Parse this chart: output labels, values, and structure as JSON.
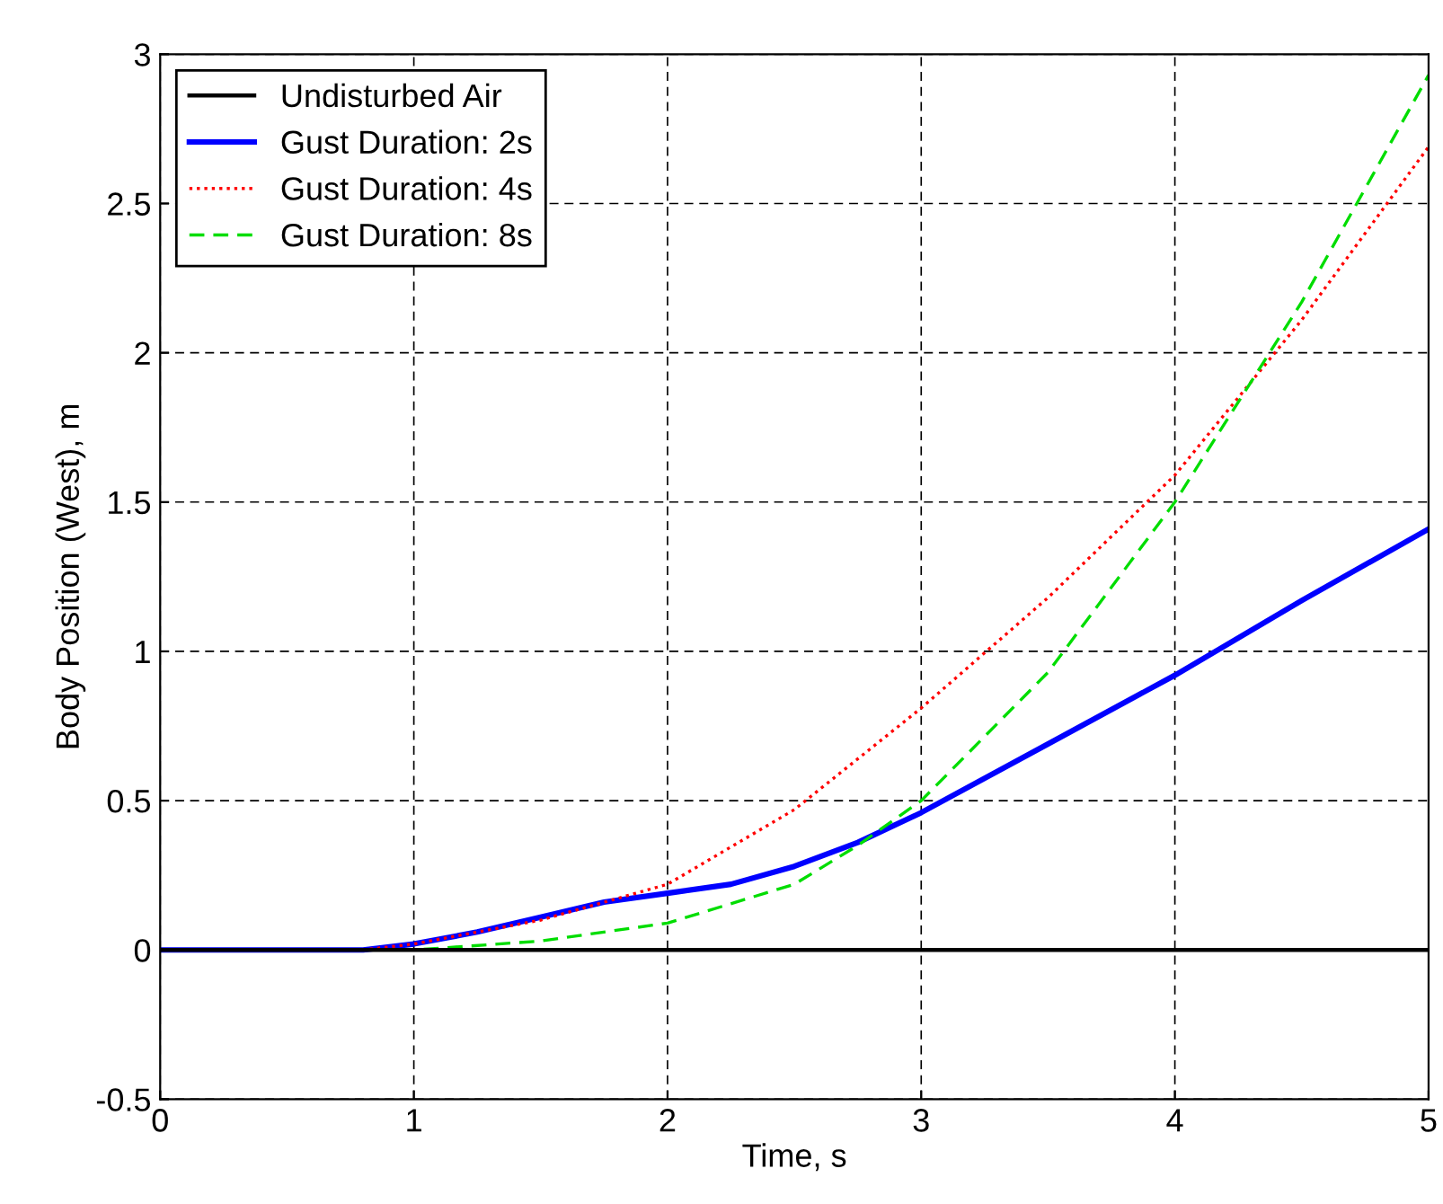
{
  "chart_data": {
    "type": "line",
    "xlabel": "Time, s",
    "ylabel": "Body Position (West), m",
    "xlim": [
      0,
      5
    ],
    "ylim": [
      -0.5,
      3
    ],
    "xticks": [
      0,
      1,
      2,
      3,
      4,
      5
    ],
    "yticks": [
      -0.5,
      0,
      0.5,
      1,
      1.5,
      2,
      2.5,
      3
    ],
    "grid": true,
    "legend": "top left",
    "series": [
      {
        "name": "Undisturbed Air",
        "color": "#000000",
        "line_style": "solid",
        "x": [
          0,
          5
        ],
        "values": [
          0,
          0
        ]
      },
      {
        "name": "Gust Duration: 2s",
        "color": "#0000ff",
        "line_style": "solid",
        "x": [
          0,
          0.8,
          1,
          1.25,
          1.5,
          1.75,
          2,
          2.25,
          2.5,
          2.75,
          3,
          3.5,
          4,
          4.5,
          5
        ],
        "values": [
          0,
          0,
          0.02,
          0.06,
          0.11,
          0.16,
          0.19,
          0.22,
          0.28,
          0.36,
          0.46,
          0.69,
          0.92,
          1.17,
          1.41
        ]
      },
      {
        "name": "Gust Duration: 4s",
        "color": "#ff0000",
        "line_style": "dotted",
        "x": [
          0,
          0.8,
          1,
          1.5,
          2,
          2.5,
          3,
          3.5,
          4,
          4.5,
          5
        ],
        "values": [
          0,
          0,
          0.02,
          0.1,
          0.22,
          0.47,
          0.81,
          1.18,
          1.59,
          2.11,
          2.69
        ]
      },
      {
        "name": "Gust Duration: 8s",
        "color": "#00dd00",
        "line_style": "dashed",
        "x": [
          0,
          1,
          1.5,
          2,
          2.5,
          2.75,
          3,
          3.5,
          4,
          4.5,
          5
        ],
        "values": [
          0,
          0,
          0.03,
          0.09,
          0.22,
          0.35,
          0.5,
          0.93,
          1.5,
          2.17,
          2.93
        ]
      }
    ]
  }
}
